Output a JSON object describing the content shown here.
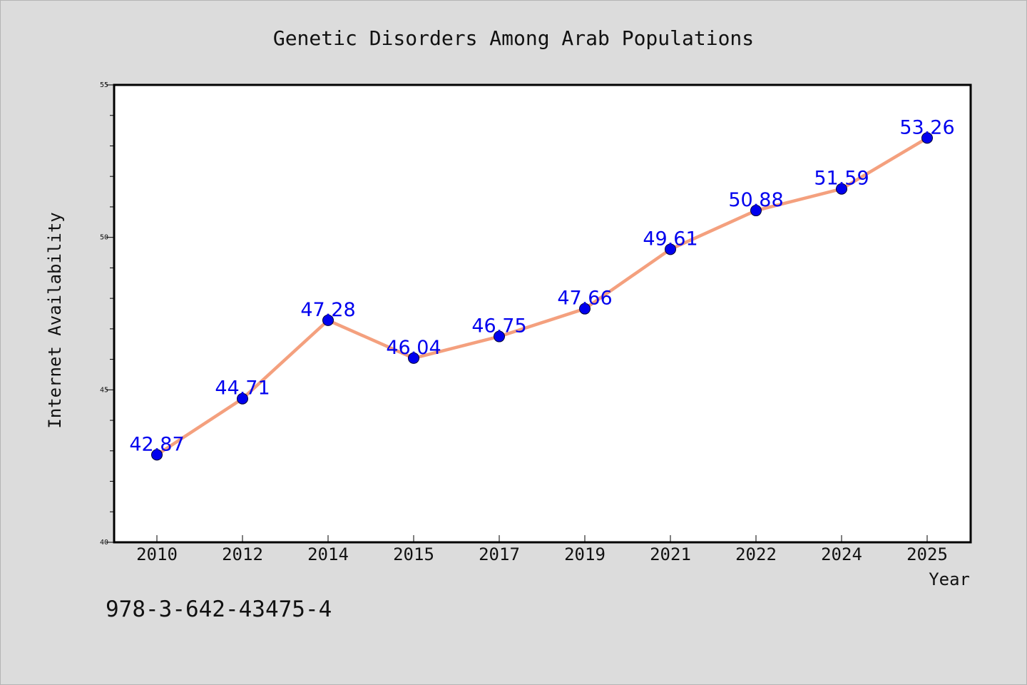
{
  "chart_data": {
    "type": "line",
    "title": "Genetic Disorders Among Arab Populations",
    "xlabel": "Year",
    "ylabel": "Internet Availability",
    "categories": [
      "2010",
      "2012",
      "2014",
      "2015",
      "2017",
      "2019",
      "2021",
      "2022",
      "2024",
      "2025"
    ],
    "series": [
      {
        "values": [
          42.87,
          44.71,
          47.28,
          46.04,
          46.75,
          47.66,
          49.61,
          50.88,
          51.59,
          53.26
        ]
      }
    ],
    "ylim": [
      40,
      55
    ],
    "yticks": [
      "40",
      "45",
      "50",
      "55"
    ],
    "grid": false,
    "legend": "none",
    "line_color": "#f4a07e",
    "marker_color": "#0000ee",
    "label_color": "#0000ee"
  },
  "footer": {
    "isbn": "978-3-642-43475-4"
  }
}
